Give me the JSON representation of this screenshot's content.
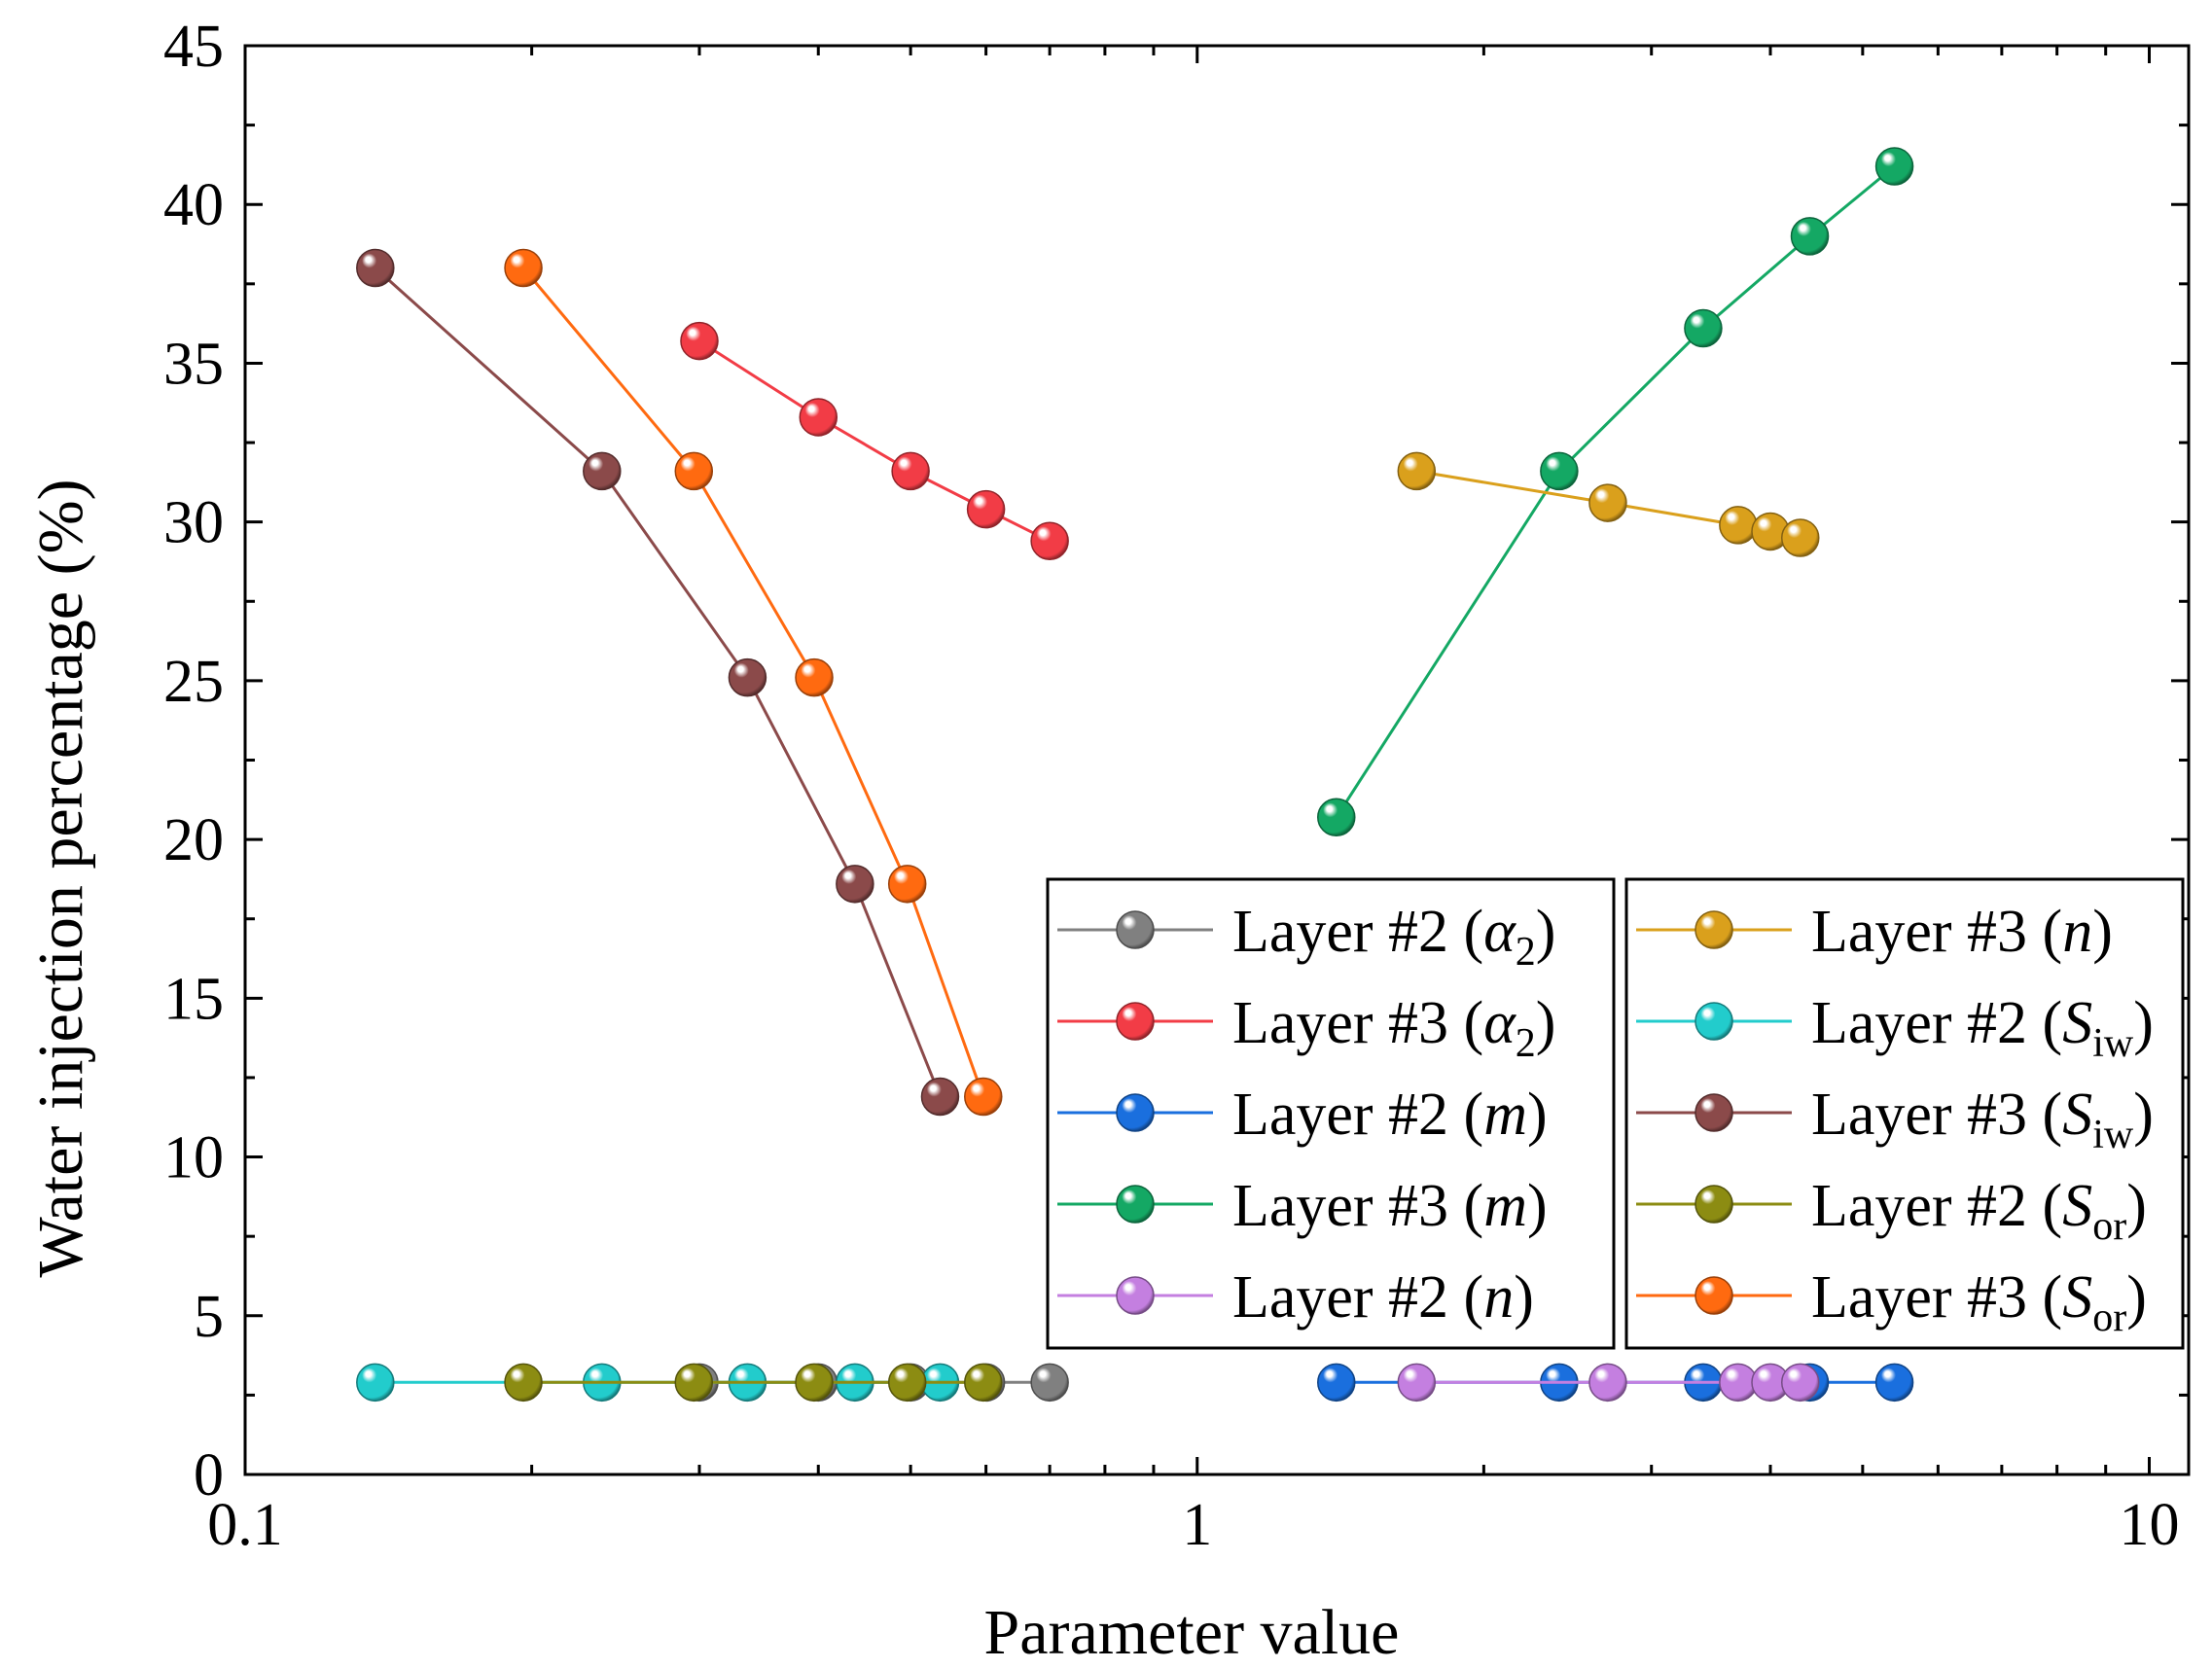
{
  "chart_data": {
    "type": "scatter",
    "title": "",
    "xlabel": "Parameter value",
    "ylabel": "Water injection percentage (%)",
    "xscale": "log",
    "xlim": [
      0.1,
      11
    ],
    "ylim": [
      0,
      45
    ],
    "x_ticks": [
      {
        "value": 0.1,
        "label": "0.1"
      },
      {
        "value": 1,
        "label": "1"
      },
      {
        "value": 10,
        "label": "10"
      }
    ],
    "y_ticks": [
      {
        "value": 0,
        "label": "0"
      },
      {
        "value": 5,
        "label": "5"
      },
      {
        "value": 10,
        "label": "10"
      },
      {
        "value": 15,
        "label": "15"
      },
      {
        "value": 20,
        "label": "20"
      },
      {
        "value": 25,
        "label": "25"
      },
      {
        "value": 30,
        "label": "30"
      },
      {
        "value": 35,
        "label": "35"
      },
      {
        "value": 40,
        "label": "40"
      },
      {
        "value": 45,
        "label": "45"
      }
    ],
    "grid": false,
    "legend_position": "lower-right",
    "series": [
      {
        "name": "Layer #2 (α2)",
        "label": "Layer #2 (",
        "param": "α",
        "sub": "2",
        "color": "#808080",
        "points": [
          [
            0.3,
            2.9
          ],
          [
            0.4,
            2.9
          ],
          [
            0.5,
            2.9
          ],
          [
            0.6,
            2.9
          ],
          [
            0.7,
            2.9
          ]
        ]
      },
      {
        "name": "Layer #3 (α2)",
        "label": "Layer #3 (",
        "param": "α",
        "sub": "2",
        "color": "#f23c46",
        "points": [
          [
            0.3,
            35.7
          ],
          [
            0.4,
            33.3
          ],
          [
            0.5,
            31.6
          ],
          [
            0.6,
            30.4
          ],
          [
            0.7,
            29.4
          ]
        ]
      },
      {
        "name": "Layer #2 (m)",
        "label": "Layer #2 (",
        "param": "m",
        "sub": "",
        "color": "#1a6fde",
        "points": [
          [
            1.4,
            2.9
          ],
          [
            2.4,
            2.9
          ],
          [
            3.4,
            2.9
          ],
          [
            4.4,
            2.9
          ],
          [
            5.4,
            2.9
          ]
        ]
      },
      {
        "name": "Layer #3 (m)",
        "label": "Layer #3 (",
        "param": "m",
        "sub": "",
        "color": "#14a864",
        "points": [
          [
            1.4,
            20.7
          ],
          [
            2.4,
            31.6
          ],
          [
            3.4,
            36.1
          ],
          [
            4.4,
            39.0
          ],
          [
            5.4,
            41.2
          ]
        ]
      },
      {
        "name": "Layer #2 (n)",
        "label": "Layer #2 (",
        "param": "n",
        "sub": "",
        "color": "#c47fe0",
        "points": [
          [
            1.7,
            2.9
          ],
          [
            2.7,
            2.9
          ],
          [
            3.7,
            2.9
          ],
          [
            4.0,
            2.9
          ],
          [
            4.3,
            2.9
          ]
        ]
      },
      {
        "name": "Layer #3 (n)",
        "label": "Layer #3 (",
        "param": "n",
        "sub": "",
        "color": "#daa01c",
        "points": [
          [
            1.7,
            31.6
          ],
          [
            2.7,
            30.6
          ],
          [
            3.7,
            29.9
          ],
          [
            4.0,
            29.7
          ],
          [
            4.3,
            29.5
          ]
        ]
      },
      {
        "name": "Layer #2 (Siw)",
        "label": "Layer #2 (",
        "param": "S",
        "sub": "iw",
        "color": "#22cccc",
        "points": [
          [
            0.137,
            2.9
          ],
          [
            0.237,
            2.9
          ],
          [
            0.337,
            2.9
          ],
          [
            0.437,
            2.9
          ],
          [
            0.537,
            2.9
          ]
        ]
      },
      {
        "name": "Layer #3 (Siw)",
        "label": "Layer #3 (",
        "param": "S",
        "sub": "iw",
        "color": "#8b4a4a",
        "points": [
          [
            0.137,
            38.0
          ],
          [
            0.237,
            31.6
          ],
          [
            0.337,
            25.1
          ],
          [
            0.437,
            18.6
          ],
          [
            0.537,
            11.9
          ]
        ]
      },
      {
        "name": "Layer #2 (Sor)",
        "label": "Layer #2 (",
        "param": "S",
        "sub": "or",
        "color": "#8c8c12",
        "points": [
          [
            0.196,
            2.9
          ],
          [
            0.296,
            2.9
          ],
          [
            0.396,
            2.9
          ],
          [
            0.496,
            2.9
          ],
          [
            0.596,
            2.9
          ]
        ]
      },
      {
        "name": "Layer #3 (Sor)",
        "label": "Layer #3 (",
        "param": "S",
        "sub": "or",
        "color": "#ff6a10",
        "points": [
          [
            0.196,
            38.0
          ],
          [
            0.296,
            31.6
          ],
          [
            0.396,
            25.1
          ],
          [
            0.496,
            18.6
          ],
          [
            0.596,
            11.9
          ]
        ]
      }
    ],
    "draw_order": [
      0,
      1,
      6,
      8,
      2,
      4,
      3,
      5,
      7,
      9
    ]
  }
}
